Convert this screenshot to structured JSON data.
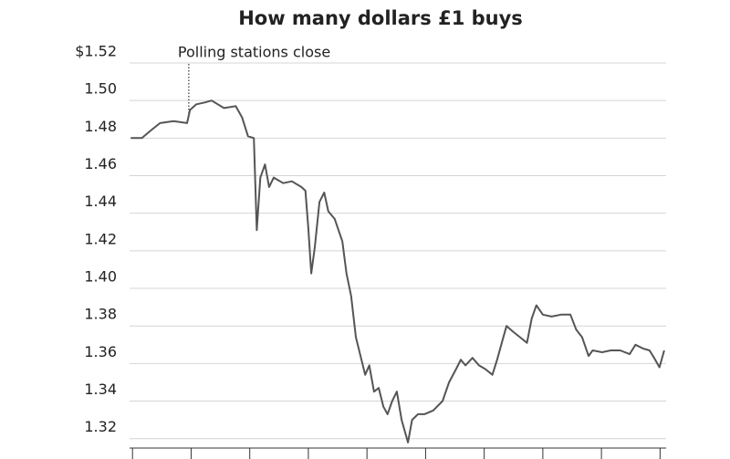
{
  "chart_data": {
    "type": "line",
    "title": "How many dollars £1 buys",
    "annotation": {
      "text": "Polling stations close",
      "x": 0.96
    },
    "xlim": [
      -0.05,
      9.15
    ],
    "xticks": [
      0,
      1,
      2,
      3,
      4,
      5,
      6,
      7,
      8,
      9
    ],
    "ylim": [
      1.315,
      1.52
    ],
    "yticks": [
      {
        "value": 1.52,
        "label": "$1.52"
      },
      {
        "value": 1.5,
        "label": "1.50"
      },
      1.48,
      1.46,
      1.44,
      1.42,
      {
        "value": 1.4,
        "label": "1.40"
      },
      1.38,
      1.36,
      1.34,
      1.32
    ],
    "grid": true,
    "series": [
      {
        "color": "#555555",
        "x": [
          -0.03,
          0.16,
          0.31,
          0.47,
          0.7,
          0.93,
          0.98,
          1.09,
          1.24,
          1.35,
          1.56,
          1.76,
          1.87,
          1.97,
          2.07,
          2.12,
          2.18,
          2.26,
          2.33,
          2.41,
          2.57,
          2.72,
          2.88,
          2.95,
          3.0,
          3.05,
          3.11,
          3.19,
          3.27,
          3.34,
          3.45,
          3.58,
          3.65,
          3.73,
          3.81,
          3.89,
          3.97,
          4.04,
          4.12,
          4.2,
          4.28,
          4.35,
          4.43,
          4.51,
          4.59,
          4.7,
          4.77,
          4.87,
          4.98,
          5.13,
          5.29,
          5.4,
          5.52,
          5.6,
          5.68,
          5.8,
          5.91,
          6.02,
          6.14,
          6.22,
          6.3,
          6.38,
          6.49,
          6.61,
          6.73,
          6.81,
          6.89,
          7.0,
          7.15,
          7.31,
          7.47,
          7.57,
          7.67,
          7.78,
          7.85,
          8.01,
          8.16,
          8.32,
          8.48,
          8.58,
          8.71,
          8.82,
          8.9,
          8.99,
          9.07
        ],
        "values": [
          1.48,
          1.48,
          1.484,
          1.488,
          1.489,
          1.488,
          1.495,
          1.498,
          1.499,
          1.5,
          1.496,
          1.497,
          1.491,
          1.481,
          1.48,
          1.431,
          1.459,
          1.466,
          1.454,
          1.459,
          1.456,
          1.457,
          1.454,
          1.452,
          1.432,
          1.408,
          1.422,
          1.446,
          1.451,
          1.441,
          1.437,
          1.425,
          1.408,
          1.396,
          1.374,
          1.364,
          1.354,
          1.359,
          1.345,
          1.347,
          1.337,
          1.333,
          1.34,
          1.345,
          1.33,
          1.318,
          1.33,
          1.333,
          1.333,
          1.335,
          1.34,
          1.35,
          1.357,
          1.362,
          1.359,
          1.363,
          1.359,
          1.357,
          1.354,
          1.362,
          1.371,
          1.38,
          1.377,
          1.374,
          1.371,
          1.384,
          1.391,
          1.386,
          1.385,
          1.386,
          1.386,
          1.378,
          1.374,
          1.364,
          1.367,
          1.366,
          1.367,
          1.367,
          1.365,
          1.37,
          1.368,
          1.367,
          1.363,
          1.358,
          1.367
        ]
      }
    ]
  }
}
